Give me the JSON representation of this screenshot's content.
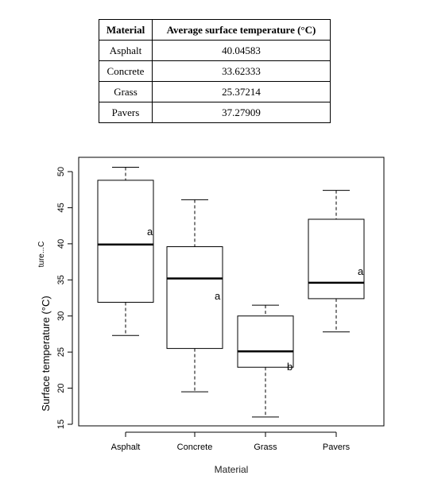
{
  "table": {
    "headers": [
      "Material",
      "Average surface temperature (°C)"
    ],
    "rows": [
      [
        "Asphalt",
        "40.04583"
      ],
      [
        "Concrete",
        "33.62333"
      ],
      [
        "Grass",
        "25.37214"
      ],
      [
        "Pavers",
        "37.27909"
      ]
    ]
  },
  "chart_data": {
    "type": "boxplot",
    "xlabel": "Material",
    "ylabel": "Surface temperature (°C)",
    "ylabel_overlap_fragment": "ture...C",
    "categories": [
      "Asphalt",
      "Concrete",
      "Grass",
      "Pavers"
    ],
    "ylim": [
      15,
      51
    ],
    "yticks": [
      15,
      20,
      25,
      30,
      35,
      40,
      45,
      50
    ],
    "boxes": [
      {
        "category": "Asphalt",
        "min": 27.3,
        "q1": 31.9,
        "median": 39.9,
        "q3": 48.8,
        "max": 50.6,
        "group": "a"
      },
      {
        "category": "Concrete",
        "min": 19.5,
        "q1": 25.5,
        "median": 35.2,
        "q3": 39.6,
        "max": 46.1,
        "group": "a"
      },
      {
        "category": "Grass",
        "min": 16.0,
        "q1": 22.9,
        "median": 25.1,
        "q3": 30.0,
        "max": 31.5,
        "group": "b"
      },
      {
        "category": "Pavers",
        "min": 27.8,
        "q1": 32.4,
        "median": 34.6,
        "q3": 43.4,
        "max": 47.4,
        "group": "a"
      }
    ],
    "grid": false,
    "legend": "none"
  }
}
